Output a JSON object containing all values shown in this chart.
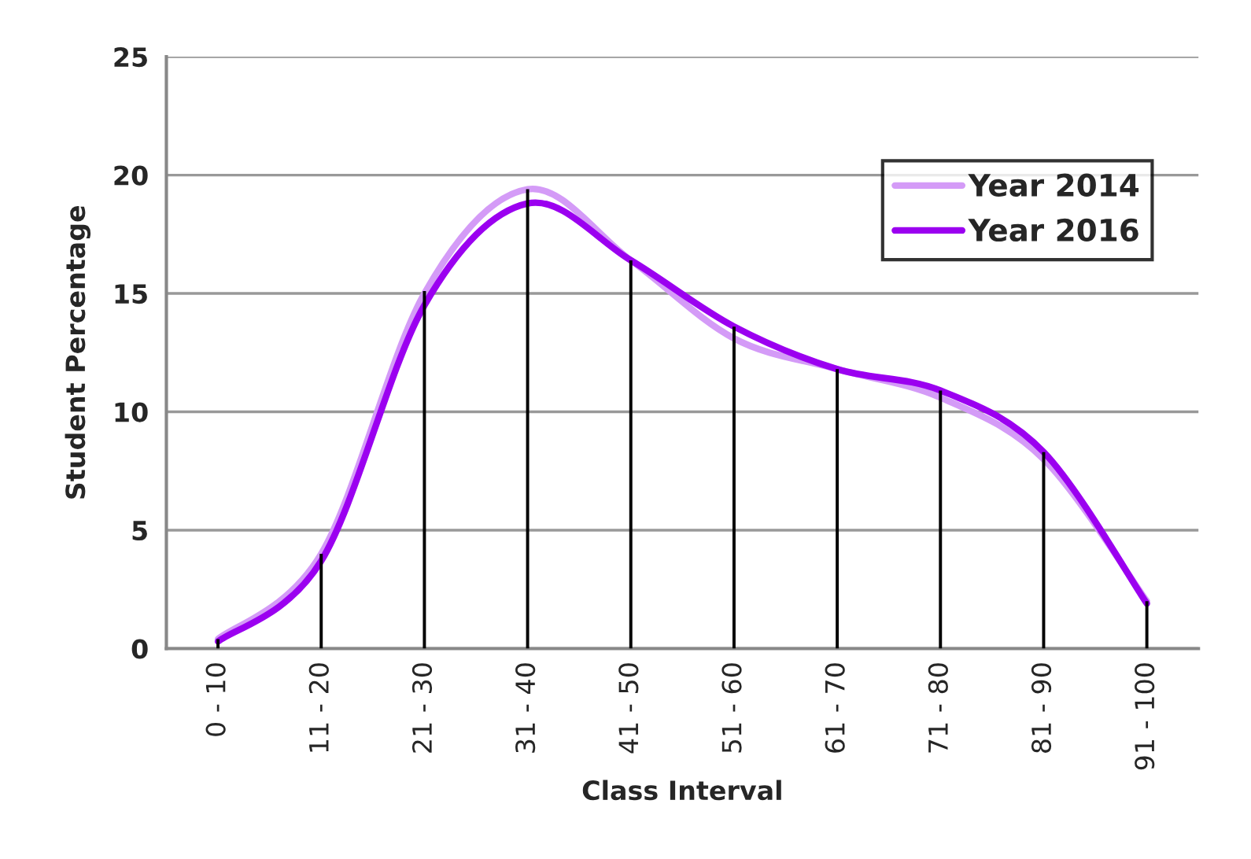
{
  "chart_data": {
    "type": "line",
    "xlabel": "Class Interval",
    "ylabel": "Student Percentage",
    "categories": [
      "0 - 10",
      "11 - 20",
      "21 - 30",
      "31 - 40",
      "41 - 50",
      "51 - 60",
      "61 - 70",
      "71 - 80",
      "81 - 90",
      "91 - 100"
    ],
    "series": [
      {
        "type": "bar",
        "color": "#000000",
        "values": [
          0.4,
          4.0,
          15.1,
          19.4,
          16.4,
          13.6,
          11.8,
          10.9,
          8.3,
          2.0
        ]
      },
      {
        "name": "Year 2014",
        "color": "#d49bf7",
        "values": [
          0.4,
          4.0,
          15.0,
          19.4,
          16.4,
          13.1,
          11.8,
          10.6,
          8.0,
          2.0
        ]
      },
      {
        "name": "Year 2016",
        "color": "#9b00f0",
        "values": [
          0.3,
          3.7,
          14.5,
          18.8,
          16.4,
          13.6,
          11.8,
          10.9,
          8.3,
          1.9
        ]
      }
    ],
    "ylim": [
      0,
      25
    ],
    "yticks": [
      0,
      5,
      10,
      15,
      20,
      25
    ],
    "grid": "y",
    "legend": "top right",
    "marker": "none",
    "line_style": "solid"
  }
}
